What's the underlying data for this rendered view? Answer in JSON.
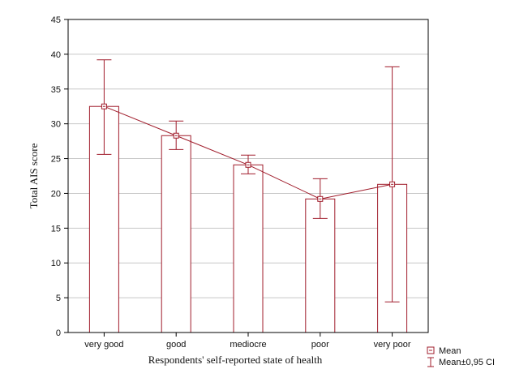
{
  "chart_data": {
    "type": "bar",
    "title": "",
    "xlabel": "Respondents' self-reported state of health",
    "ylabel": "Total AIS score",
    "categories": [
      "very good",
      "good",
      "mediocre",
      "poor",
      "very poor"
    ],
    "ylim": [
      0,
      45
    ],
    "yticks": [
      0,
      5,
      10,
      15,
      20,
      25,
      30,
      35,
      40,
      45
    ],
    "grid": true,
    "legend_position": "bottom-right",
    "series": [
      {
        "name": "Mean",
        "values": [
          32.5,
          28.3,
          24.1,
          19.2,
          21.3
        ],
        "ci_lower": [
          25.6,
          26.3,
          22.8,
          16.4,
          4.4
        ],
        "ci_upper": [
          39.2,
          30.4,
          25.5,
          22.1,
          38.2
        ]
      }
    ],
    "legend": {
      "mean_label": "Mean",
      "ci_label": "Mean±0,95 CI"
    },
    "colors": {
      "series": "#a01c2b",
      "grid": "#c8c8c8",
      "axis": "#000000"
    }
  }
}
